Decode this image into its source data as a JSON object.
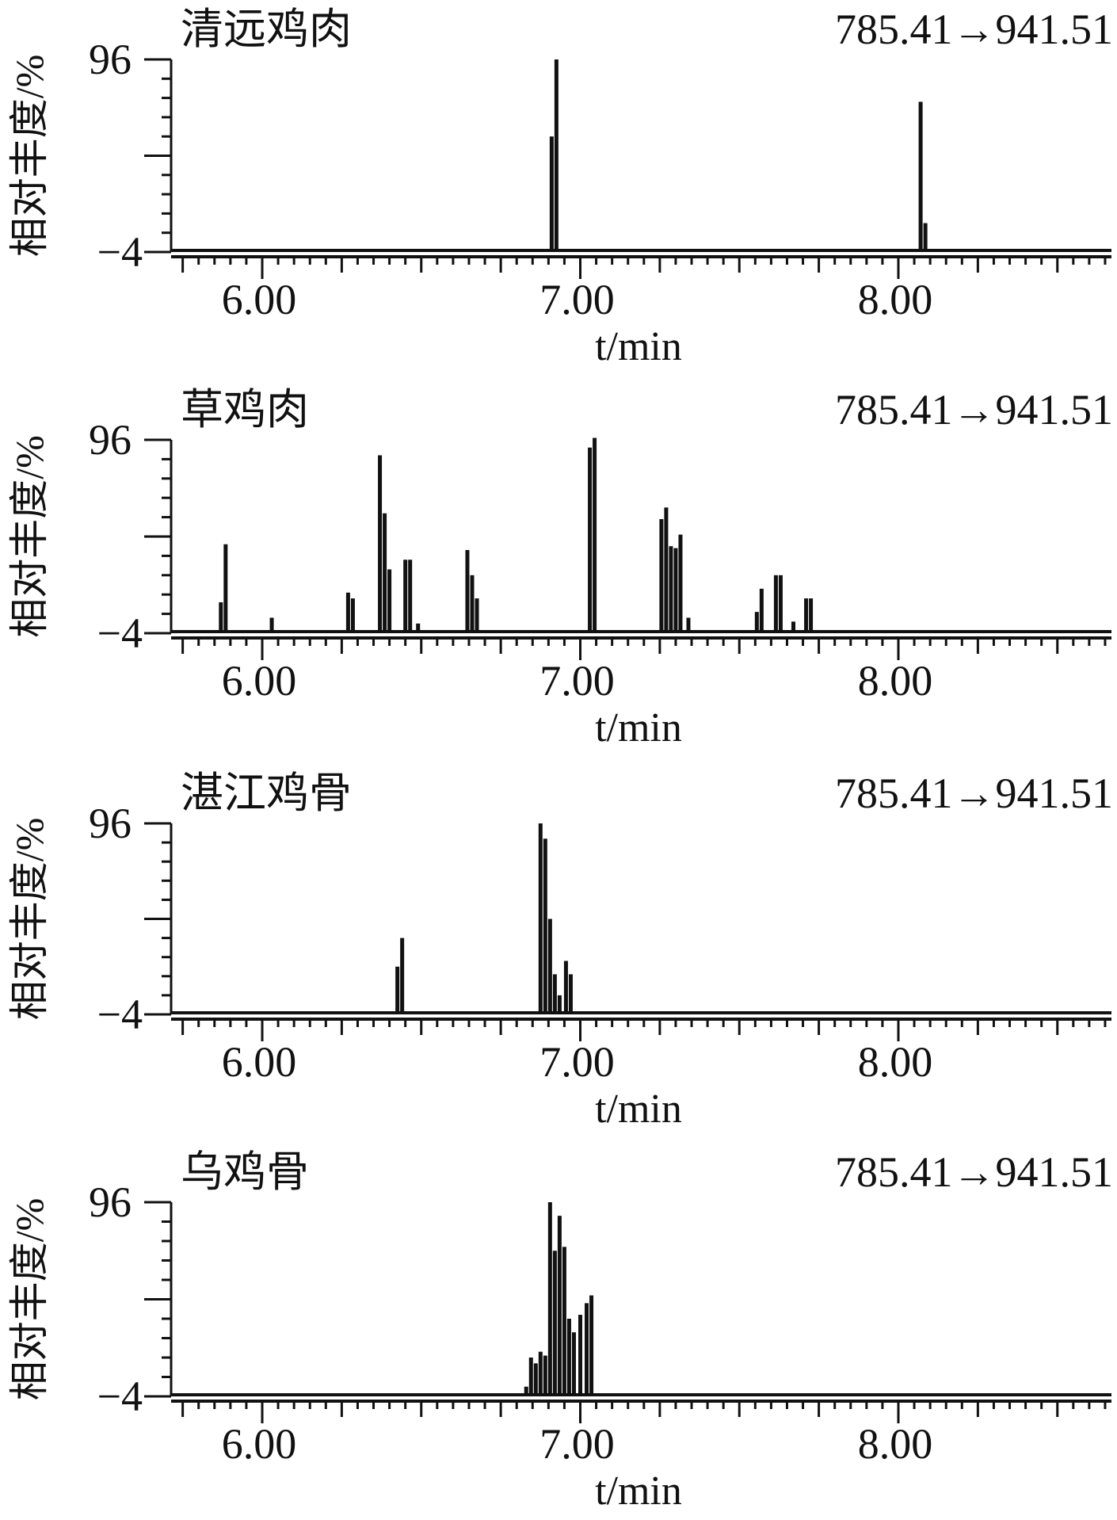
{
  "chart_data": [
    {
      "type": "bar",
      "title": "清远鸡肉",
      "transition_label": "785.41→941.51",
      "ylabel": "相对丰度/%",
      "xlabel": "t/min",
      "ylim": [
        -4,
        96
      ],
      "yticks": [
        "96",
        "−4"
      ],
      "xlim": [
        5.7,
        8.7
      ],
      "xticks": [
        {
          "value": 6.0,
          "label": "6.00"
        },
        {
          "value": 7.0,
          "label": "7.00"
        },
        {
          "value": 8.0,
          "label": "8.00"
        }
      ],
      "peaks": [
        [
          6.91,
          56
        ],
        [
          6.925,
          96
        ],
        [
          8.07,
          74
        ],
        [
          8.085,
          11
        ]
      ]
    },
    {
      "type": "bar",
      "title": "草鸡肉",
      "transition_label": "785.41→941.51",
      "ylabel": "相对丰度/%",
      "xlabel": "t/min",
      "ylim": [
        -4,
        96
      ],
      "yticks": [
        "96",
        "−4"
      ],
      "xlim": [
        5.7,
        8.7
      ],
      "xticks": [
        {
          "value": 6.0,
          "label": "6.00"
        },
        {
          "value": 7.0,
          "label": "7.00"
        },
        {
          "value": 8.0,
          "label": "8.00"
        }
      ],
      "peaks": [
        [
          5.87,
          12
        ],
        [
          5.885,
          42
        ],
        [
          6.03,
          4
        ],
        [
          6.27,
          17
        ],
        [
          6.285,
          14
        ],
        [
          6.37,
          88
        ],
        [
          6.385,
          58
        ],
        [
          6.4,
          29
        ],
        [
          6.45,
          34
        ],
        [
          6.465,
          34
        ],
        [
          6.49,
          1
        ],
        [
          6.645,
          39
        ],
        [
          6.66,
          26
        ],
        [
          6.675,
          14
        ],
        [
          7.03,
          92
        ],
        [
          7.045,
          97
        ],
        [
          7.255,
          55
        ],
        [
          7.27,
          61
        ],
        [
          7.285,
          41
        ],
        [
          7.3,
          40
        ],
        [
          7.315,
          47
        ],
        [
          7.34,
          4
        ],
        [
          7.555,
          7
        ],
        [
          7.57,
          19
        ],
        [
          7.615,
          26
        ],
        [
          7.63,
          26
        ],
        [
          7.67,
          2
        ],
        [
          7.71,
          14
        ],
        [
          7.725,
          14
        ]
      ]
    },
    {
      "type": "bar",
      "title": "湛江鸡骨",
      "transition_label": "785.41→941.51",
      "ylabel": "相对丰度/%",
      "xlabel": "t/min",
      "ylim": [
        -4,
        96
      ],
      "yticks": [
        "96",
        "−4"
      ],
      "xlim": [
        5.7,
        8.7
      ],
      "xticks": [
        {
          "value": 6.0,
          "label": "6.00"
        },
        {
          "value": 7.0,
          "label": "7.00"
        },
        {
          "value": 8.0,
          "label": "8.00"
        }
      ],
      "peaks": [
        [
          6.425,
          21
        ],
        [
          6.44,
          36
        ],
        [
          6.875,
          96
        ],
        [
          6.89,
          88
        ],
        [
          6.905,
          46
        ],
        [
          6.92,
          17
        ],
        [
          6.935,
          6
        ],
        [
          6.955,
          24
        ],
        [
          6.97,
          17
        ]
      ]
    },
    {
      "type": "bar",
      "title": "乌鸡骨",
      "transition_label": "785.41→941.51",
      "ylabel": "相对丰度/%",
      "xlabel": "t/min",
      "ylim": [
        -4,
        96
      ],
      "yticks": [
        "96",
        "−4"
      ],
      "xlim": [
        5.7,
        8.7
      ],
      "xticks": [
        {
          "value": 6.0,
          "label": "6.00"
        },
        {
          "value": 7.0,
          "label": "7.00"
        },
        {
          "value": 8.0,
          "label": "8.00"
        }
      ],
      "peaks": [
        [
          6.83,
          1
        ],
        [
          6.845,
          16
        ],
        [
          6.86,
          13
        ],
        [
          6.875,
          19
        ],
        [
          6.89,
          17
        ],
        [
          6.905,
          96
        ],
        [
          6.92,
          71
        ],
        [
          6.935,
          89
        ],
        [
          6.95,
          73
        ],
        [
          6.965,
          36
        ],
        [
          6.98,
          29
        ],
        [
          7.0,
          38
        ],
        [
          7.02,
          44
        ],
        [
          7.035,
          48
        ]
      ]
    }
  ]
}
